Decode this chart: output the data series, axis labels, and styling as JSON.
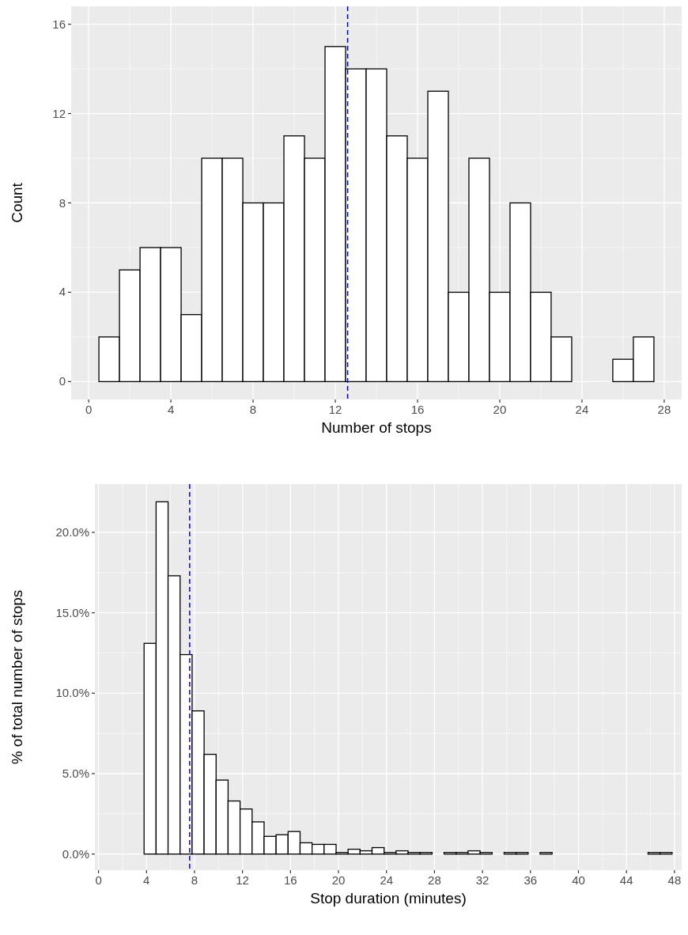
{
  "chart_data": [
    {
      "type": "histogram",
      "xlabel": "Number of stops",
      "ylabel": "Count",
      "bins": [
        0.5,
        1.5,
        2.5,
        3.5,
        4.5,
        5.5,
        6.5,
        7.5,
        8.5,
        9.5,
        10.5,
        11.5,
        12.5,
        13.5,
        14.5,
        15.5,
        16.5,
        17.5,
        18.5,
        19.5,
        20.5,
        21.5,
        22.5,
        23.5,
        24.5,
        25.5,
        26.5,
        27.5
      ],
      "values": [
        2,
        5,
        6,
        6,
        3,
        10,
        10,
        8,
        8,
        11,
        10,
        15,
        14,
        14,
        11,
        10,
        13,
        4,
        10,
        4,
        8,
        4,
        2,
        0,
        0,
        1,
        2
      ],
      "color": "#ffffff",
      "xlim": [
        -0.85,
        28.85
      ],
      "ylim": [
        -0.8,
        16.8
      ],
      "xticks": [
        0,
        4,
        8,
        12,
        16,
        20,
        24,
        28
      ],
      "yticks": [
        0,
        4,
        8,
        12,
        16
      ],
      "grid": true,
      "ref_lines": [
        {
          "axis": "x",
          "value": 12.6,
          "color": "#0000cd",
          "line_style": "dashed"
        }
      ]
    },
    {
      "type": "histogram",
      "xlabel": "Stop duration (minutes)",
      "ylabel": "% of total number of stops",
      "bins": [
        2.8,
        3.8,
        4.8,
        5.8,
        6.8,
        7.8,
        8.8,
        9.8,
        10.8,
        11.8,
        12.8,
        13.8,
        14.8,
        15.8,
        16.8,
        17.8,
        18.8,
        19.8,
        20.8,
        21.8,
        22.8,
        23.8,
        24.8,
        25.8,
        26.8,
        27.8,
        28.8,
        29.8,
        30.8,
        31.8,
        32.8,
        33.8,
        34.8,
        35.8,
        36.8,
        37.8,
        38.8,
        39.8,
        40.8,
        41.8,
        42.8,
        43.8,
        44.8,
        45.8,
        46.8,
        47.8
      ],
      "values": [
        0,
        13.1,
        21.9,
        17.3,
        12.4,
        8.9,
        6.2,
        4.6,
        3.3,
        2.8,
        2.0,
        1.1,
        1.2,
        1.4,
        0.7,
        0.6,
        0.6,
        0.1,
        0.3,
        0.2,
        0.4,
        0.1,
        0.2,
        0.1,
        0.1,
        0,
        0.1,
        0.1,
        0.2,
        0.1,
        0,
        0.1,
        0.1,
        0,
        0.1,
        0,
        0,
        0,
        0,
        0,
        0,
        0,
        0,
        0.1,
        0.1
      ],
      "color": "#ffffff",
      "xlim": [
        -0.3,
        48.6
      ],
      "ylim": [
        -1.0,
        23.0
      ],
      "xticks": [
        0,
        4,
        8,
        12,
        16,
        20,
        24,
        28,
        32,
        36,
        40,
        44,
        48
      ],
      "yticks": [
        {
          "value": 0,
          "label": "0.0%"
        },
        {
          "value": 5,
          "label": "5.0%"
        },
        {
          "value": 10,
          "label": "10.0%"
        },
        {
          "value": 15,
          "label": "15.0%"
        },
        {
          "value": 20,
          "label": "20.0%"
        }
      ],
      "grid": true,
      "ref_lines": [
        {
          "axis": "x",
          "value": 7.6,
          "color": "#0000cd",
          "line_style": "dashed"
        }
      ]
    }
  ]
}
